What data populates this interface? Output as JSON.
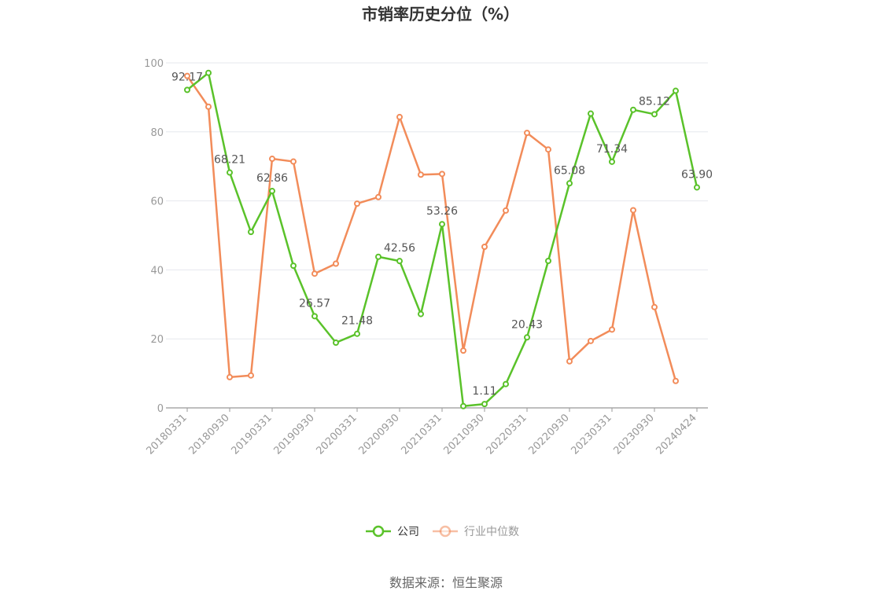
{
  "chart_data": {
    "type": "line",
    "title": "市销率历史分位（%）",
    "source": "数据来源：恒生聚源",
    "ylim": [
      0,
      100
    ],
    "yticks": [
      0,
      20,
      40,
      60,
      80,
      100
    ],
    "grid": true,
    "legend_position": "bottom",
    "x_tick_labels": [
      "20180331",
      "20180930",
      "20190331",
      "20190930",
      "20200331",
      "20200930",
      "20210331",
      "20210930",
      "20220331",
      "20220930",
      "20230331",
      "20230930",
      "20240424"
    ],
    "x": [
      "20180331",
      "20180630",
      "20180930",
      "20181231",
      "20190331",
      "20190630",
      "20190930",
      "20191231",
      "20200331",
      "20200630",
      "20200930",
      "20201231",
      "20210331",
      "20210630",
      "20210930",
      "20211231",
      "20220331",
      "20220630",
      "20220930",
      "20221231",
      "20230331",
      "20230630",
      "20230930",
      "20231231",
      "20240424"
    ],
    "series": [
      {
        "name": "公司",
        "color": "#5ac22a",
        "values": [
          92.17,
          97.1,
          68.21,
          51.0,
          62.86,
          41.2,
          26.57,
          18.9,
          21.48,
          43.8,
          42.56,
          27.2,
          53.26,
          0.5,
          1.11,
          6.9,
          20.43,
          42.6,
          65.08,
          85.3,
          71.34,
          86.4,
          85.12,
          91.9,
          63.9
        ],
        "labels": [
          "92.17",
          "",
          "68.21",
          "",
          "62.86",
          "",
          "26.57",
          "",
          "21.48",
          "",
          "42.56",
          "",
          "53.26",
          "",
          "1.11",
          "",
          "20.43",
          "",
          "65.08",
          "",
          "71.34",
          "",
          "85.12",
          "",
          "63.90"
        ]
      },
      {
        "name": "行业中位数",
        "color": "#f28c5a",
        "values": [
          96.2,
          87.3,
          8.9,
          9.4,
          72.2,
          71.4,
          38.9,
          41.8,
          59.2,
          61.1,
          84.3,
          67.6,
          67.8,
          16.6,
          46.7,
          57.2,
          79.7,
          74.9,
          13.5,
          19.4,
          22.7,
          57.3,
          29.2,
          7.8,
          null
        ]
      }
    ]
  }
}
